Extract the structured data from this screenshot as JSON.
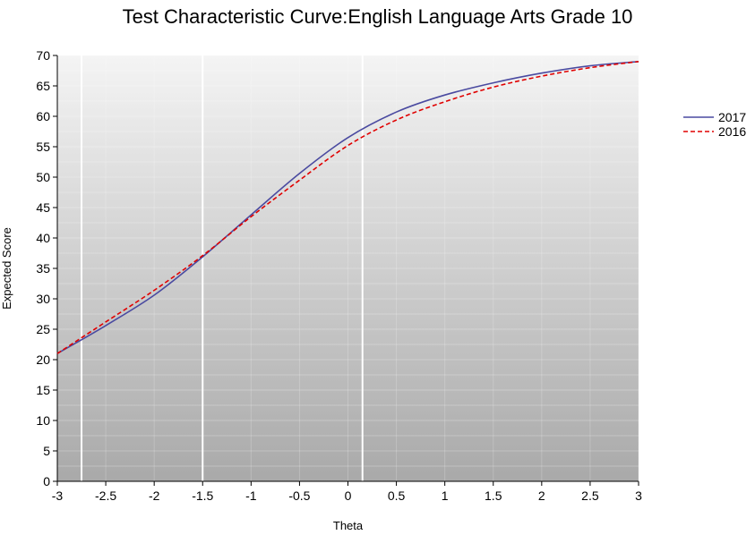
{
  "chart_data": {
    "type": "line",
    "title": "Test Characteristic Curve:English Language Arts Grade 10",
    "xlabel": "Theta",
    "ylabel": "Expected Score",
    "xlim": [
      -3,
      3
    ],
    "ylim": [
      0,
      70
    ],
    "x_ticks": [
      -3,
      -2.5,
      -2,
      -1.5,
      -1,
      -0.5,
      0,
      0.5,
      1,
      1.5,
      2,
      2.5,
      3
    ],
    "x_tick_labels": [
      "-3",
      "-2.5",
      "-2",
      "-1.5",
      "-1",
      "-0.5",
      "0",
      "0.5",
      "1",
      "1.5",
      "2",
      "2.5",
      "3"
    ],
    "y_ticks": [
      0,
      5,
      10,
      15,
      20,
      25,
      30,
      35,
      40,
      45,
      50,
      55,
      60,
      65,
      70
    ],
    "y_tick_labels": [
      "0",
      "5",
      "10",
      "15",
      "20",
      "25",
      "30",
      "35",
      "40",
      "45",
      "50",
      "55",
      "60",
      "65",
      "70"
    ],
    "reference_lines_x": [
      -2.75,
      -1.5,
      0.15
    ],
    "grid": true,
    "legend_position": "right",
    "x": [
      -3,
      -2.5,
      -2,
      -1.5,
      -1,
      -0.5,
      0,
      0.5,
      1,
      1.5,
      2,
      2.5,
      3
    ],
    "series": [
      {
        "name": "2017",
        "color": "#4a4aa0",
        "dash": "solid",
        "values": [
          21.0,
          25.6,
          30.6,
          36.9,
          43.8,
          50.6,
          56.5,
          60.7,
          63.5,
          65.5,
          67.1,
          68.3,
          69.0
        ]
      },
      {
        "name": "2016",
        "color": "#e00000",
        "dash": "dashed",
        "values": [
          21.0,
          26.2,
          31.4,
          37.1,
          43.5,
          49.5,
          55.2,
          59.4,
          62.4,
          64.8,
          66.6,
          68.0,
          69.0
        ]
      }
    ]
  }
}
